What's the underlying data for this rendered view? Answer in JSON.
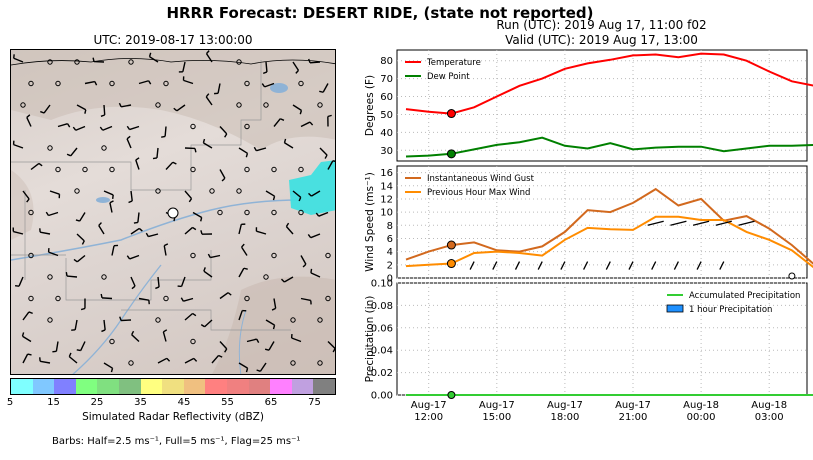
{
  "header": {
    "title": "HRRR Forecast: DESERT RIDE, (state not reported)",
    "map_title": "UTC: 2019-08-17 13:00:00",
    "run_line": "Run (UTC): 2019 Aug 17, 11:00 f02",
    "valid_line": "Valid (UTC): 2019 Aug 17, 13:00"
  },
  "colorbar": {
    "label": "Simulated Radar Reflectivity (dBZ)",
    "ticks": [
      "5",
      "15",
      "25",
      "35",
      "45",
      "55",
      "65",
      "75"
    ],
    "colors": [
      "#7fffff",
      "#80c8ff",
      "#8080ff",
      "#80ff80",
      "#80e080",
      "#80c080",
      "#ffff80",
      "#f0e080",
      "#f0c080",
      "#ff8080",
      "#f08080",
      "#e08080",
      "#ff80ff",
      "#c0a0e0",
      "#808080"
    ]
  },
  "barb_note": "Barbs: Half=2.5 ms⁻¹, Full=5 ms⁻¹, Flag=25 ms⁻¹",
  "chart_data": [
    {
      "type": "line",
      "panel": "temperature",
      "ylabel": "Degrees (F)",
      "ylim": [
        24,
        86
      ],
      "yticks": [
        30,
        40,
        50,
        60,
        70,
        80
      ],
      "grid": true,
      "legend_position": "top-left",
      "x": [
        "11:00",
        "12:00",
        "13:00",
        "14:00",
        "15:00",
        "16:00",
        "17:00",
        "18:00",
        "19:00",
        "20:00",
        "21:00",
        "22:00",
        "23:00",
        "00:00",
        "01:00",
        "02:00",
        "03:00",
        "04:00",
        "05:00"
      ],
      "series": [
        {
          "name": "Temperature",
          "color": "#ff0000",
          "values": [
            53,
            51.5,
            50.5,
            54,
            60,
            66,
            70,
            75.5,
            78.5,
            80.5,
            83,
            83.5,
            82,
            84,
            83.5,
            80,
            74,
            68.5,
            66
          ]
        },
        {
          "name": "Dew Point",
          "color": "#008000",
          "values": [
            26.5,
            27,
            28,
            30.5,
            33,
            34.5,
            37,
            32.5,
            31,
            34,
            30.5,
            31.5,
            32,
            32,
            29.5,
            31,
            32.5,
            32.5,
            33
          ]
        }
      ],
      "current_marker_x": "13:00"
    },
    {
      "type": "line",
      "panel": "wind",
      "ylabel": "Wind Speed (ms⁻¹)",
      "ylim": [
        0,
        17
      ],
      "yticks": [
        0,
        2,
        4,
        6,
        8,
        10,
        12,
        14,
        16
      ],
      "grid": true,
      "legend_position": "top-left",
      "x": [
        "11:00",
        "12:00",
        "13:00",
        "14:00",
        "15:00",
        "16:00",
        "17:00",
        "18:00",
        "19:00",
        "20:00",
        "21:00",
        "22:00",
        "23:00",
        "00:00",
        "01:00",
        "02:00",
        "03:00",
        "04:00",
        "05:00"
      ],
      "series": [
        {
          "name": "Instantaneous Wind Gust",
          "color": "#d2691e",
          "values": [
            2.8,
            4,
            5,
            5.4,
            4.2,
            4,
            4.8,
            7,
            10.3,
            10,
            11.4,
            13.5,
            11,
            12,
            8.7,
            9.4,
            7.5,
            5,
            2
          ]
        },
        {
          "name": "Previous Hour Max Wind",
          "color": "#ff8c00",
          "values": [
            1.8,
            2,
            2.2,
            3.8,
            4,
            3.8,
            3.4,
            5.8,
            7.6,
            7.4,
            7.3,
            9.3,
            9.3,
            8.8,
            8.8,
            7,
            5.8,
            4.2,
            1.5
          ]
        }
      ],
      "current_marker_x": "13:00"
    },
    {
      "type": "bar",
      "panel": "precipitation",
      "ylabel": "Precipitation (in)",
      "ylim": [
        0,
        0.1
      ],
      "yticks": [
        "0.00",
        "0.02",
        "0.04",
        "0.06",
        "0.08",
        "0.10"
      ],
      "grid": true,
      "legend_position": "top-right",
      "x": [
        "11:00",
        "12:00",
        "13:00",
        "14:00",
        "15:00",
        "16:00",
        "17:00",
        "18:00",
        "19:00",
        "20:00",
        "21:00",
        "22:00",
        "23:00",
        "00:00",
        "01:00",
        "02:00",
        "03:00",
        "04:00",
        "05:00"
      ],
      "series": [
        {
          "name": "Accumulated Precipitation",
          "color": "#32cd32",
          "values": [
            0,
            0,
            0,
            0,
            0,
            0,
            0,
            0,
            0,
            0,
            0,
            0,
            0,
            0,
            0,
            0,
            0,
            0,
            0
          ]
        },
        {
          "name": "1 hour Precipitation",
          "color": "#1e90ff",
          "values": [
            0,
            0,
            0,
            0,
            0,
            0,
            0,
            0,
            0,
            0,
            0,
            0,
            0,
            0,
            0,
            0,
            0,
            0,
            0
          ]
        }
      ],
      "xtick_labels": [
        {
          "at": "12:00",
          "line1": "Aug-17",
          "line2": "12:00"
        },
        {
          "at": "15:00",
          "line1": "Aug-17",
          "line2": "15:00"
        },
        {
          "at": "18:00",
          "line1": "Aug-17",
          "line2": "18:00"
        },
        {
          "at": "21:00",
          "line1": "Aug-17",
          "line2": "21:00"
        },
        {
          "at": "00:00",
          "line1": "Aug-18",
          "line2": "00:00"
        },
        {
          "at": "03:00",
          "line1": "Aug-18",
          "line2": "03:00"
        }
      ]
    }
  ]
}
